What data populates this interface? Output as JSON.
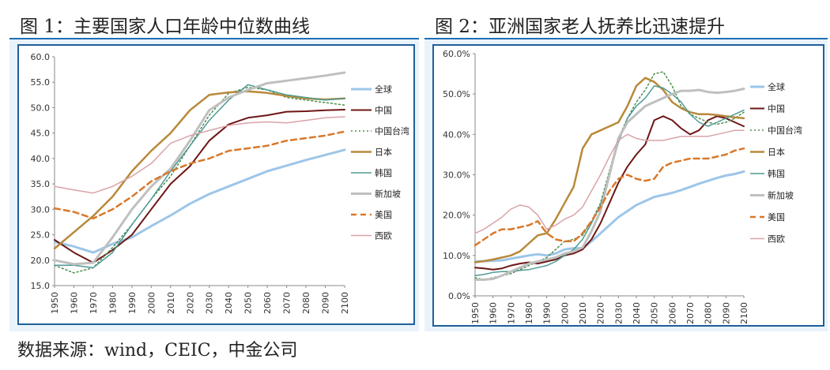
{
  "figure1": {
    "title": "图 1：主要国家人口年龄中位数曲线"
  },
  "figure2": {
    "title": "图 2：亚洲国家老人抚养比迅速提升"
  },
  "source": "数据来源：wind，CEIC，中金公司",
  "chart_data": [
    {
      "type": "line",
      "title": "主要国家人口年龄中位数曲线",
      "xlabel": "",
      "ylabel": "",
      "x": [
        1950,
        1960,
        1970,
        1980,
        1990,
        2000,
        2010,
        2020,
        2030,
        2040,
        2050,
        2060,
        2070,
        2080,
        2090,
        2100
      ],
      "xticks": [
        "1950",
        "1960",
        "1970",
        "1980",
        "1990",
        "2000",
        "2010",
        "2020",
        "2030",
        "2040",
        "2050",
        "2060",
        "2070",
        "2080",
        "2090",
        "2100"
      ],
      "ylim": [
        15,
        60
      ],
      "yticks": [
        "15.0",
        "20.0",
        "25.0",
        "30.0",
        "35.0",
        "40.0",
        "45.0",
        "50.0",
        "55.0",
        "60.0"
      ],
      "legend_position": "right",
      "series": [
        {
          "name": "全球",
          "color": "#9dc6e8",
          "dash": "",
          "width": 3,
          "values": [
            23.6,
            22.7,
            21.5,
            23.2,
            24.5,
            26.7,
            28.8,
            31.1,
            33.0,
            34.5,
            36.0,
            37.5,
            38.6,
            39.7,
            40.7,
            41.7
          ]
        },
        {
          "name": "中国",
          "color": "#6e1616",
          "dash": "",
          "width": 2,
          "values": [
            24.0,
            21.5,
            19.5,
            22.0,
            25.0,
            30.0,
            35.0,
            38.5,
            43.5,
            46.7,
            48.0,
            48.5,
            49.2,
            49.3,
            49.5,
            49.6
          ]
        },
        {
          "name": "中国台湾",
          "color": "#4f8f4f",
          "dash": "2,3",
          "width": 1.5,
          "values": [
            19.0,
            17.5,
            18.5,
            22.5,
            27.0,
            32.0,
            36.5,
            42.5,
            48.5,
            52.8,
            54.0,
            53.5,
            52.0,
            51.5,
            51.0,
            50.5
          ]
        },
        {
          "name": "日本",
          "color": "#b8893a",
          "dash": "",
          "width": 2.5,
          "values": [
            22.3,
            25.5,
            28.7,
            32.5,
            37.5,
            41.5,
            45.0,
            49.5,
            52.5,
            53.0,
            53.2,
            52.9,
            52.3,
            51.8,
            51.6,
            51.8
          ]
        },
        {
          "name": "韩国",
          "color": "#4f9a94",
          "dash": "",
          "width": 1.5,
          "values": [
            19.0,
            19.0,
            18.5,
            21.5,
            27.0,
            32.0,
            37.5,
            42.5,
            47.5,
            51.5,
            54.5,
            53.5,
            52.5,
            52.0,
            51.5,
            51.8
          ]
        },
        {
          "name": "新加坡",
          "color": "#bfbfbf",
          "dash": "",
          "width": 3,
          "values": [
            20.0,
            19.2,
            19.5,
            24.5,
            30.0,
            34.5,
            38.0,
            43.5,
            49.5,
            52.0,
            53.5,
            54.8,
            55.3,
            55.8,
            56.3,
            56.9
          ]
        },
        {
          "name": "美国",
          "color": "#d9782a",
          "dash": "7,5",
          "width": 2.5,
          "values": [
            30.2,
            29.5,
            28.2,
            30.0,
            32.5,
            35.5,
            37.5,
            39.0,
            40.0,
            41.5,
            42.0,
            42.5,
            43.5,
            44.0,
            44.5,
            45.3
          ]
        },
        {
          "name": "西欧",
          "color": "#d9a3a8",
          "dash": "",
          "width": 1.5,
          "values": [
            34.5,
            33.8,
            33.2,
            34.5,
            36.5,
            39.0,
            43.0,
            44.5,
            45.5,
            46.5,
            47.0,
            47.2,
            47.0,
            47.5,
            48.0,
            48.2
          ]
        }
      ]
    },
    {
      "type": "line",
      "title": "亚洲国家老人抚养比迅速提升",
      "xlabel": "",
      "ylabel": "",
      "x": [
        1950,
        1955,
        1960,
        1965,
        1970,
        1975,
        1980,
        1985,
        1990,
        1995,
        2000,
        2005,
        2010,
        2015,
        2020,
        2025,
        2030,
        2035,
        2040,
        2045,
        2050,
        2055,
        2060,
        2065,
        2070,
        2075,
        2080,
        2085,
        2090,
        2095,
        2100
      ],
      "xticks": [
        "1950",
        "1960",
        "1970",
        "1980",
        "1990",
        "2000",
        "2010",
        "2020",
        "2030",
        "2040",
        "2050",
        "2060",
        "2070",
        "2080",
        "2090",
        "2100"
      ],
      "ylim": [
        0,
        60
      ],
      "yticks": [
        "0.0%",
        "10.0%",
        "20.0%",
        "30.0%",
        "40.0%",
        "50.0%",
        "60.0%"
      ],
      "legend_position": "right",
      "series": [
        {
          "name": "全球",
          "color": "#9dc6e8",
          "dash": "",
          "width": 3,
          "values": [
            8.5,
            8.6,
            8.7,
            8.8,
            9.2,
            9.6,
            10.0,
            10.3,
            10.0,
            10.5,
            11.5,
            11.8,
            11.8,
            13.5,
            15.5,
            17.5,
            19.5,
            21.0,
            22.5,
            23.5,
            24.5,
            25.0,
            25.5,
            26.2,
            27.0,
            27.8,
            28.5,
            29.2,
            29.8,
            30.2,
            30.8
          ]
        },
        {
          "name": "中国",
          "color": "#6e1616",
          "dash": "",
          "width": 2,
          "values": [
            7.0,
            6.8,
            6.5,
            6.8,
            7.5,
            8.0,
            8.3,
            8.0,
            8.5,
            9.0,
            10.0,
            10.5,
            11.5,
            14.0,
            18.0,
            23.0,
            28.0,
            32.0,
            35.0,
            37.5,
            43.5,
            44.5,
            43.5,
            41.5,
            40.0,
            41.0,
            43.5,
            44.5,
            44.0,
            43.0,
            42.0
          ]
        },
        {
          "name": "中国台湾",
          "color": "#4f8f4f",
          "dash": "2,3",
          "width": 1.5,
          "values": [
            4.5,
            4.0,
            4.5,
            5.0,
            5.5,
            6.5,
            7.5,
            8.5,
            9.5,
            11.5,
            13.5,
            14.0,
            15.0,
            18.5,
            23.0,
            31.0,
            39.0,
            44.0,
            48.0,
            51.0,
            55.0,
            55.5,
            52.0,
            47.0,
            45.0,
            44.0,
            43.0,
            42.5,
            43.0,
            44.0,
            45.5
          ]
        },
        {
          "name": "日本",
          "color": "#b8893a",
          "dash": "",
          "width": 2.5,
          "values": [
            8.3,
            8.6,
            9.0,
            9.5,
            10.0,
            11.0,
            13.0,
            15.0,
            15.5,
            19.0,
            23.0,
            27.0,
            36.5,
            40.0,
            41.0,
            42.0,
            43.0,
            47.0,
            52.0,
            54.0,
            53.0,
            51.0,
            48.0,
            46.5,
            45.5,
            45.0,
            45.0,
            44.8,
            44.5,
            44.2,
            44.0
          ]
        },
        {
          "name": "韩国",
          "color": "#4f9a94",
          "dash": "",
          "width": 1.5,
          "values": [
            5.0,
            5.3,
            5.8,
            6.0,
            6.0,
            6.3,
            6.5,
            7.0,
            7.5,
            8.5,
            10.0,
            11.5,
            14.0,
            18.0,
            22.5,
            30.0,
            38.0,
            44.0,
            47.0,
            49.0,
            52.0,
            51.5,
            50.0,
            48.0,
            45.0,
            43.0,
            42.0,
            43.0,
            44.0,
            45.0,
            46.0
          ]
        },
        {
          "name": "新加坡",
          "color": "#bfbfbf",
          "dash": "",
          "width": 3,
          "values": [
            4.0,
            4.0,
            4.2,
            5.0,
            6.0,
            7.0,
            8.0,
            8.5,
            9.0,
            9.5,
            10.5,
            11.0,
            12.0,
            16.0,
            21.0,
            30.0,
            39.0,
            43.0,
            45.0,
            47.0,
            48.0,
            49.0,
            50.0,
            50.8,
            50.8,
            51.0,
            50.5,
            50.3,
            50.5,
            50.8,
            51.3
          ]
        },
        {
          "name": "美国",
          "color": "#d9782a",
          "dash": "7,5",
          "width": 2.5,
          "values": [
            12.5,
            14.0,
            15.5,
            16.5,
            16.5,
            17.0,
            17.5,
            18.5,
            15.5,
            14.0,
            13.5,
            13.5,
            15.5,
            18.5,
            22.0,
            26.0,
            29.0,
            30.0,
            29.0,
            28.5,
            29.0,
            32.0,
            33.0,
            33.5,
            34.0,
            34.0,
            34.0,
            34.5,
            35.0,
            36.0,
            36.5
          ]
        },
        {
          "name": "西欧",
          "color": "#d9a3a8",
          "dash": "",
          "width": 1.5,
          "values": [
            15.5,
            16.5,
            18.0,
            19.5,
            21.5,
            22.5,
            22.0,
            20.0,
            16.5,
            17.5,
            19.0,
            20.0,
            22.0,
            26.0,
            30.0,
            34.5,
            38.5,
            40.0,
            39.0,
            38.5,
            38.5,
            38.5,
            39.0,
            39.5,
            39.5,
            39.5,
            39.5,
            40.0,
            40.5,
            41.0,
            41.0
          ]
        }
      ]
    }
  ]
}
